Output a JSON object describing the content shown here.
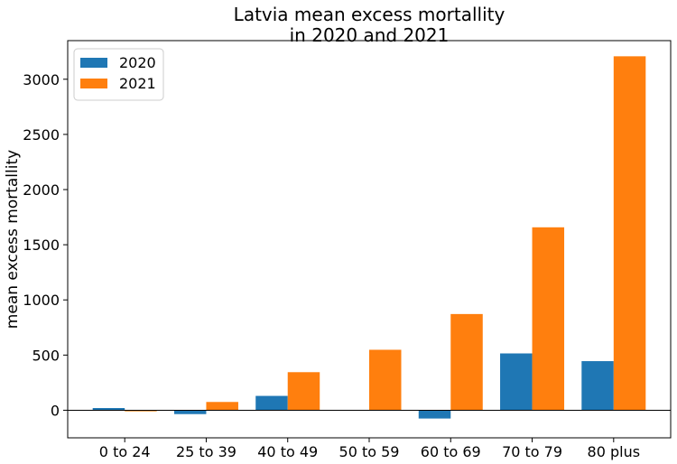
{
  "chart_data": {
    "type": "bar",
    "title": "Latvia mean excess mortallity\nin 2020 and 2021",
    "title_lines": [
      "Latvia mean excess mortallity",
      "in 2020 and 2021"
    ],
    "xlabel": "",
    "ylabel": "mean excess mortallity",
    "categories": [
      "0 to 24",
      "25 to 39",
      "40 to 49",
      "50 to 59",
      "60 to 69",
      "70 to 79",
      "80 plus"
    ],
    "series": [
      {
        "name": "2020",
        "color": "#1f77b4",
        "values": [
          20,
          -35,
          130,
          0,
          -75,
          515,
          445
        ]
      },
      {
        "name": "2021",
        "color": "#ff7f0e",
        "values": [
          -10,
          75,
          345,
          548,
          872,
          1658,
          3208
        ]
      }
    ],
    "ylim": [
      -250,
      3350
    ],
    "yticks": [
      0,
      500,
      1000,
      1500,
      2000,
      2500,
      3000
    ],
    "grid": false,
    "legend_position": "top-left",
    "zero_line": true
  }
}
